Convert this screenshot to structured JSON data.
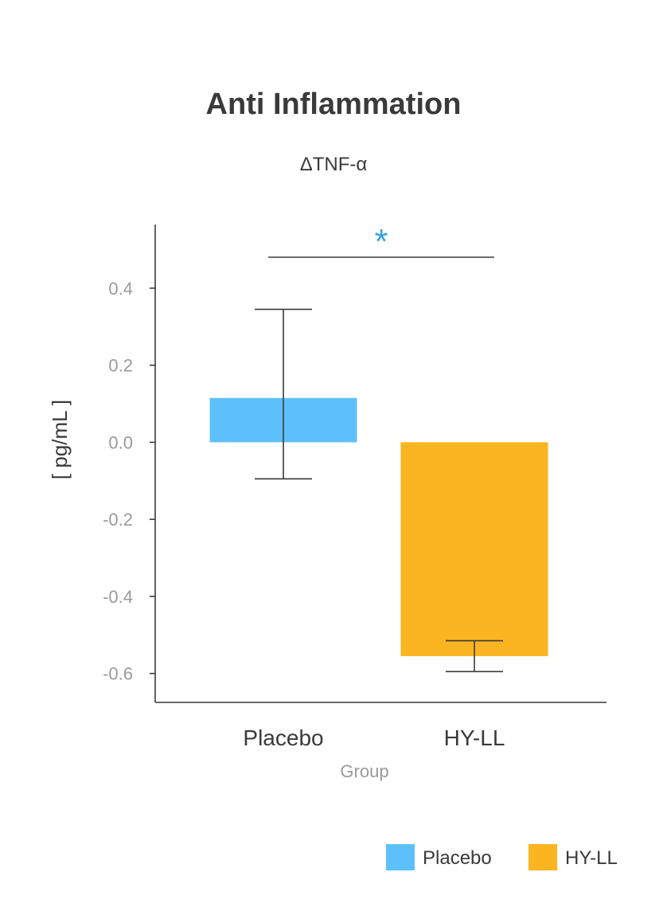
{
  "chart_data": {
    "type": "bar",
    "title": "Anti Inflammation",
    "subtitle": "ΔTNF-α",
    "xlabel": "Group",
    "ylabel": "[ pg/mL ]",
    "categories": [
      "Placebo",
      "HY-LL"
    ],
    "values": [
      0.115,
      -0.555
    ],
    "error_upper": [
      0.345,
      -0.515
    ],
    "error_lower": [
      -0.095,
      -0.595
    ],
    "colors": [
      "#5ec0fb",
      "#fbb520"
    ],
    "ylim": [
      -0.675,
      0.565
    ],
    "yticks": [
      0.4,
      0.2,
      0.0,
      -0.2,
      -0.4,
      -0.6
    ],
    "ytick_labels": [
      "0.4",
      "0.2",
      "0.0",
      "-0.2",
      "-0.4",
      "-0.6"
    ],
    "grid": false,
    "significance": {
      "between": [
        "Placebo",
        "HY-LL"
      ],
      "symbol": "*",
      "color": "#3a9ee4"
    },
    "legend": {
      "placement": "bottom-right",
      "entries": [
        "Placebo",
        "HY-LL"
      ]
    }
  }
}
